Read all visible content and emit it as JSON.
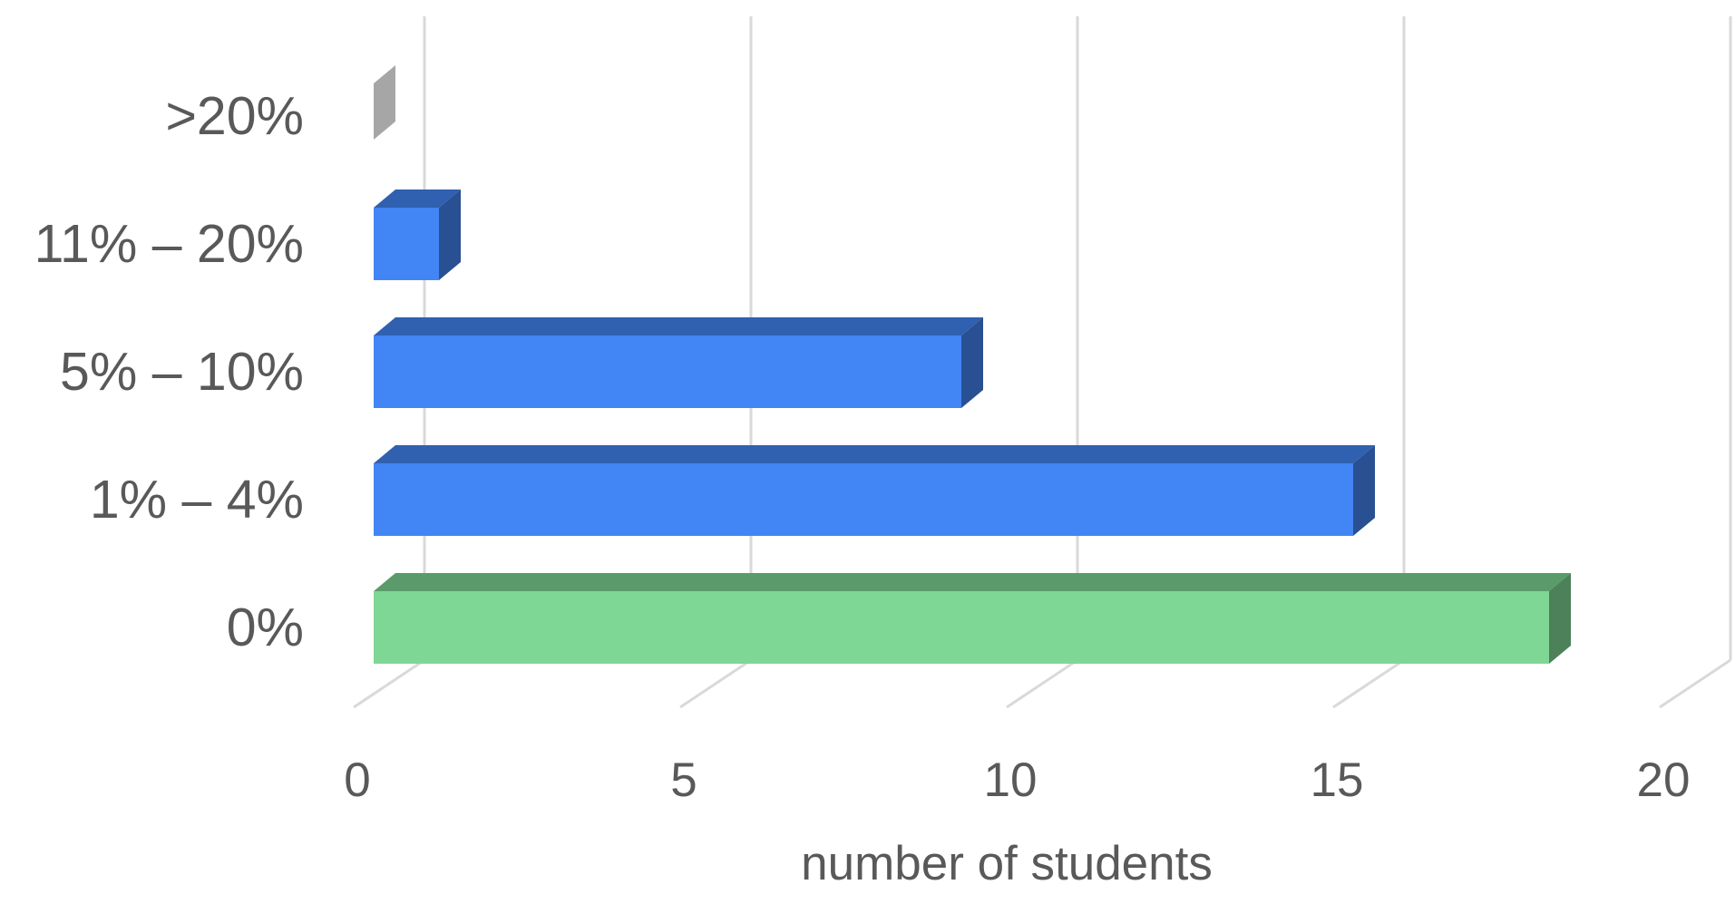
{
  "chart_data": {
    "type": "bar",
    "orientation": "horizontal",
    "style": "3d",
    "categories": [
      "0%",
      "1% – 4%",
      "5% – 10%",
      "11% – 20%",
      ">20%"
    ],
    "values": [
      18,
      15,
      9,
      1,
      0.2
    ],
    "bar_colors": [
      "#7ed794",
      "#4285f4",
      "#4285f4",
      "#4285f4",
      "#a6a6a6"
    ],
    "xlabel": "number  of students",
    "ylabel": "",
    "title": "",
    "xlim": [
      0,
      20
    ],
    "xticks": [
      0,
      5,
      10,
      15,
      20
    ],
    "grid": true,
    "legend": "none"
  }
}
